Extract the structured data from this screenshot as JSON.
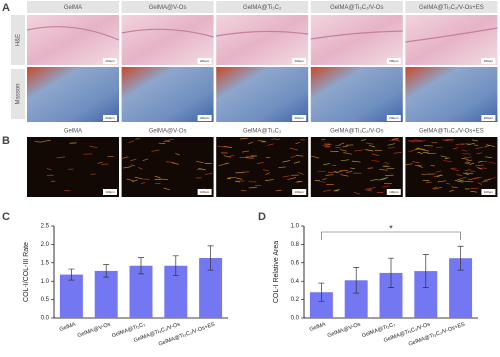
{
  "panel_labels": [
    "A",
    "B",
    "C",
    "D"
  ],
  "histology": {
    "columns": [
      "GelMA",
      "GelMA@V-Os",
      "GelMA@Ti₃C₂",
      "GelMA@Ti₃C₂/V-Os",
      "GelMA@Ti₃C₂/V-Os+ES"
    ],
    "rows": [
      "H&E",
      "Masson"
    ],
    "scale_bar": "200μm"
  },
  "polarized": {
    "scale_bar": "100μm"
  },
  "chart_data": [
    {
      "type": "bar",
      "y_label": "COL-I/COL-III Rate",
      "categories": [
        "GelMA",
        "GelMA@V-Os",
        "GelMA@Ti₃C₂",
        "GelMA@Ti₃C₂/V-Os",
        "GelMA@Ti₃C₂/V-Os+ES"
      ],
      "values": [
        1.18,
        1.28,
        1.42,
        1.42,
        1.63
      ],
      "errors": [
        0.15,
        0.17,
        0.22,
        0.27,
        0.33
      ],
      "color": "#7477f2",
      "ylim": [
        0,
        2.5
      ],
      "yticks": [
        {
          "value": 0,
          "label": "0.0"
        },
        0.5,
        {
          "value": 1,
          "label": "1.0"
        },
        1.5,
        {
          "value": 2,
          "label": "2.0"
        },
        2.5
      ]
    },
    {
      "type": "bar",
      "y_label": "COL-I Relative Area",
      "categories": [
        "GelMA",
        "GelMA@V-Os",
        "GelMA@Ti₃C₂",
        "GelMA@Ti₃C₂/V-Os",
        "GelMA@Ti₃C₂/V-Os+ES"
      ],
      "values": [
        0.28,
        0.41,
        0.49,
        0.51,
        0.65
      ],
      "errors": [
        0.1,
        0.14,
        0.16,
        0.18,
        0.13
      ],
      "color": "#7477f2",
      "ylim": [
        0,
        1
      ],
      "yticks": [
        {
          "value": 0,
          "label": "0.0"
        },
        0.2,
        0.4,
        0.6,
        0.8,
        {
          "value": 1,
          "label": "1.0"
        }
      ],
      "annotation": "*"
    }
  ]
}
